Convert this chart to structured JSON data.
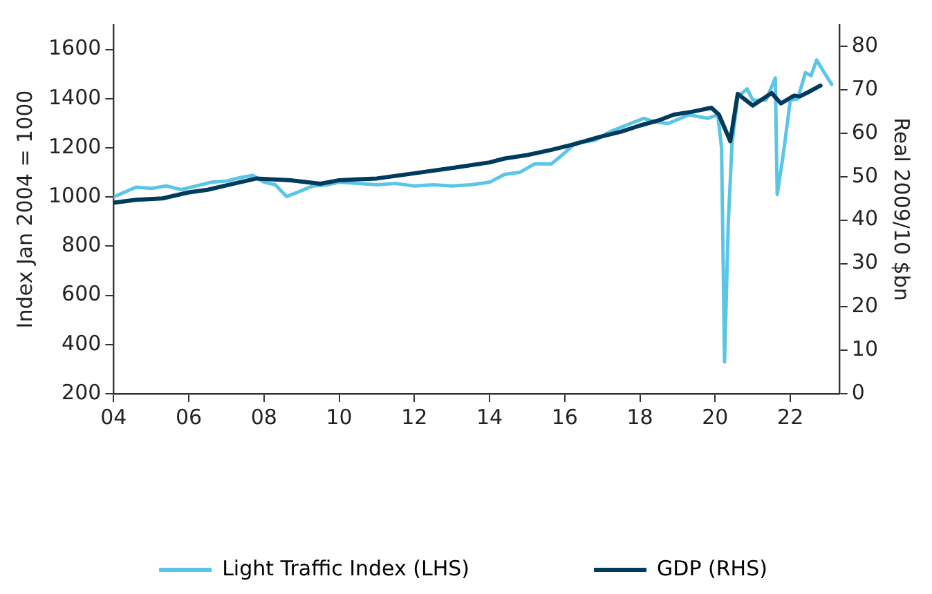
{
  "chart_data": {
    "type": "line",
    "ylabel": "Index Jan 2004 = 1000",
    "y2label": "Real 2009/10 $bn",
    "xlim": [
      2004,
      2023.3
    ],
    "xticks": [
      {
        "value": 2004,
        "label": "04"
      },
      {
        "value": 2006,
        "label": "06"
      },
      {
        "value": 2008,
        "label": "08"
      },
      {
        "value": 2010,
        "label": "10"
      },
      {
        "value": 2012,
        "label": "12"
      },
      {
        "value": 2014,
        "label": "14"
      },
      {
        "value": 2016,
        "label": "16"
      },
      {
        "value": 2018,
        "label": "18"
      },
      {
        "value": 2020,
        "label": "20"
      },
      {
        "value": 2022,
        "label": "22"
      }
    ],
    "ylim": [
      200,
      1700
    ],
    "yticks": [
      200,
      400,
      600,
      800,
      1000,
      1200,
      1400,
      1600
    ],
    "y2lim": [
      0,
      85
    ],
    "y2ticks": [
      0,
      10,
      20,
      30,
      40,
      50,
      60,
      70,
      80
    ],
    "grid": false,
    "legend": "bottom",
    "marker": "none",
    "line_style": "solid",
    "series": [
      {
        "name": "Light Traffic Index (LHS)",
        "color": "#5bc5e8",
        "x": [
          2004,
          2004.3,
          2004.6,
          2005,
          2005.4,
          2005.8,
          2006.2,
          2006.6,
          2007,
          2007.4,
          2007.7,
          2008,
          2008.3,
          2008.6,
          2008.9,
          2009.3,
          2009.7,
          2010,
          2010.5,
          2011,
          2011.5,
          2012,
          2012.5,
          2013,
          2013.5,
          2014,
          2014.4,
          2014.8,
          2015.2,
          2015.65,
          2016,
          2016.3,
          2016.8,
          2017.2,
          2017.6,
          2018.1,
          2018.4,
          2018.75,
          2019.3,
          2019.8,
          2020.07,
          2020.17,
          2020.25,
          2020.35,
          2020.45,
          2020.6,
          2020.85,
          2021,
          2021.35,
          2021.6,
          2021.65,
          2021.8,
          2022,
          2022.2,
          2022.4,
          2022.55,
          2022.7,
          2022.9,
          2023.1
        ],
        "values": [
          1000,
          1020,
          1040,
          1035,
          1045,
          1030,
          1045,
          1060,
          1065,
          1080,
          1088,
          1060,
          1050,
          1002,
          1020,
          1045,
          1050,
          1060,
          1055,
          1050,
          1055,
          1045,
          1050,
          1045,
          1050,
          1060,
          1092,
          1100,
          1135,
          1135,
          1180,
          1221,
          1230,
          1265,
          1290,
          1320,
          1305,
          1299,
          1334,
          1320,
          1334,
          1200,
          329,
          900,
          1221,
          1407,
          1440,
          1394,
          1394,
          1484,
          1010,
          1160,
          1394,
          1400,
          1506,
          1493,
          1557,
          1506,
          1458
        ]
      },
      {
        "name": "GDP (RHS)",
        "color": "#003b5c",
        "axis": "y2",
        "x": [
          2004,
          2004.6,
          2005.3,
          2006,
          2006.5,
          2007,
          2007.8,
          2008.7,
          2009.5,
          2010,
          2011,
          2012,
          2013,
          2014,
          2014.4,
          2015,
          2015.65,
          2016.3,
          2016.9,
          2017.5,
          2018,
          2018.5,
          2018.9,
          2019.4,
          2019.9,
          2020.1,
          2020.4,
          2020.6,
          2021,
          2021.5,
          2021.75,
          2022.1,
          2022.25,
          2022.5,
          2022.8
        ],
        "values": [
          44.0,
          44.7,
          45.0,
          46.4,
          47.0,
          48.0,
          49.6,
          49.2,
          48.4,
          49.2,
          49.6,
          50.8,
          52.0,
          53.3,
          54.2,
          55.0,
          56.2,
          57.6,
          59.1,
          60.4,
          61.8,
          63.0,
          64.3,
          65.0,
          65.9,
          64.3,
          58.2,
          69.1,
          66.4,
          69.3,
          66.9,
          68.7,
          68.5,
          69.6,
          71.0
        ]
      }
    ]
  }
}
